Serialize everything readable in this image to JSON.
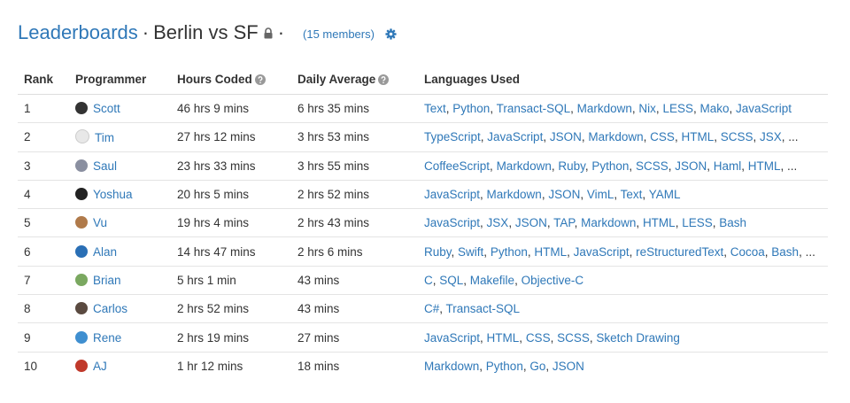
{
  "header": {
    "title": "Leaderboards",
    "separator": "·",
    "name": "Berlin vs SF",
    "members": "(15 members)"
  },
  "table": {
    "columns": [
      "Rank",
      "Programmer",
      "Hours Coded",
      "Daily Average",
      "Languages Used"
    ],
    "language_separator": ", ",
    "rows": [
      {
        "rank": 1,
        "programmer": "Scott",
        "hours": "46 hrs 9 mins",
        "daily": "6 hrs 35 mins",
        "languages": [
          "Text",
          "Python",
          "Transact-SQL",
          "Markdown",
          "Nix",
          "LESS",
          "Mako",
          "JavaScript"
        ]
      },
      {
        "rank": 2,
        "programmer": "Tim",
        "hours": "27 hrs 12 mins",
        "daily": "3 hrs 53 mins",
        "languages": [
          "TypeScript",
          "JavaScript",
          "JSON",
          "Markdown",
          "CSS",
          "HTML",
          "SCSS",
          "JSX"
        ],
        "more": "..."
      },
      {
        "rank": 3,
        "programmer": "Saul",
        "hours": "23 hrs 33 mins",
        "daily": "3 hrs 55 mins",
        "languages": [
          "CoffeeScript",
          "Markdown",
          "Ruby",
          "Python",
          "SCSS",
          "JSON",
          "Haml",
          "HTML"
        ],
        "more": "..."
      },
      {
        "rank": 4,
        "programmer": "Yoshua",
        "hours": "20 hrs 5 mins",
        "daily": "2 hrs 52 mins",
        "languages": [
          "JavaScript",
          "Markdown",
          "JSON",
          "VimL",
          "Text",
          "YAML"
        ]
      },
      {
        "rank": 5,
        "programmer": "Vu",
        "hours": "19 hrs 4 mins",
        "daily": "2 hrs 43 mins",
        "languages": [
          "JavaScript",
          "JSX",
          "JSON",
          "TAP",
          "Markdown",
          "HTML",
          "LESS",
          "Bash"
        ]
      },
      {
        "rank": 6,
        "programmer": "Alan",
        "hours": "14 hrs 47 mins",
        "daily": "2 hrs 6 mins",
        "languages": [
          "Ruby",
          "Swift",
          "Python",
          "HTML",
          "JavaScript",
          "reStructuredText",
          "Cocoa",
          "Bash"
        ],
        "more": "..."
      },
      {
        "rank": 7,
        "programmer": "Brian",
        "hours": "5 hrs 1 min",
        "daily": "43 mins",
        "languages": [
          "C",
          "SQL",
          "Makefile",
          "Objective-C"
        ]
      },
      {
        "rank": 8,
        "programmer": "Carlos",
        "hours": "2 hrs 52 mins",
        "daily": "43 mins",
        "languages": [
          "C#",
          "Transact-SQL"
        ]
      },
      {
        "rank": 9,
        "programmer": "Rene",
        "hours": "2 hrs 19 mins",
        "daily": "27 mins",
        "languages": [
          "JavaScript",
          "HTML",
          "CSS",
          "SCSS",
          "Sketch Drawing"
        ]
      },
      {
        "rank": 10,
        "programmer": "AJ",
        "hours": "1 hr 12 mins",
        "daily": "18 mins",
        "languages": [
          "Markdown",
          "Python",
          "Go",
          "JSON"
        ]
      }
    ]
  }
}
